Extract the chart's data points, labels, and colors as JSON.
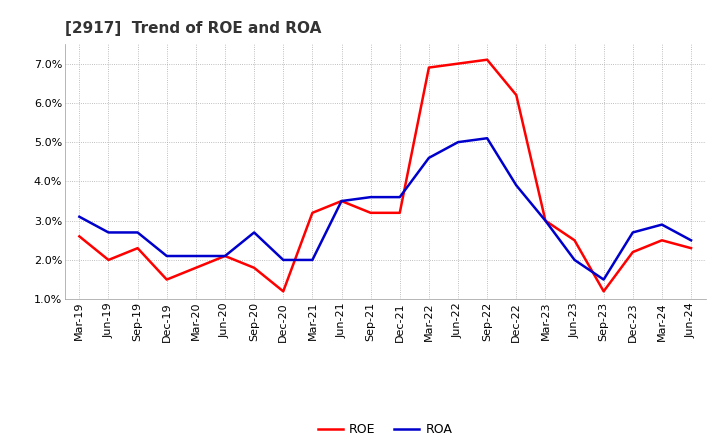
{
  "title": "[2917]  Trend of ROE and ROA",
  "x_labels": [
    "Mar-19",
    "Jun-19",
    "Sep-19",
    "Dec-19",
    "Mar-20",
    "Jun-20",
    "Sep-20",
    "Dec-20",
    "Mar-21",
    "Jun-21",
    "Sep-21",
    "Dec-21",
    "Mar-22",
    "Jun-22",
    "Sep-22",
    "Dec-22",
    "Mar-23",
    "Jun-23",
    "Sep-23",
    "Dec-23",
    "Mar-24",
    "Jun-24"
  ],
  "roe": [
    2.6,
    2.0,
    2.3,
    1.5,
    1.8,
    2.1,
    1.8,
    1.2,
    3.2,
    3.5,
    3.2,
    3.2,
    6.9,
    7.0,
    7.1,
    6.2,
    3.0,
    2.5,
    1.2,
    2.2,
    2.5,
    2.3
  ],
  "roa": [
    3.1,
    2.7,
    2.7,
    2.1,
    2.1,
    2.1,
    2.7,
    2.0,
    2.0,
    3.5,
    3.6,
    3.6,
    4.6,
    5.0,
    5.1,
    3.9,
    3.0,
    2.0,
    1.5,
    2.7,
    2.9,
    2.5
  ],
  "roe_color": "#ff0000",
  "roa_color": "#0000cc",
  "ylim": [
    1.0,
    7.5
  ],
  "yticks": [
    1.0,
    2.0,
    3.0,
    4.0,
    5.0,
    6.0,
    7.0
  ],
  "bg_color": "#ffffff",
  "grid_color": "#aaaaaa",
  "title_fontsize": 11,
  "legend_fontsize": 9,
  "tick_fontsize": 8,
  "line_width": 1.8
}
